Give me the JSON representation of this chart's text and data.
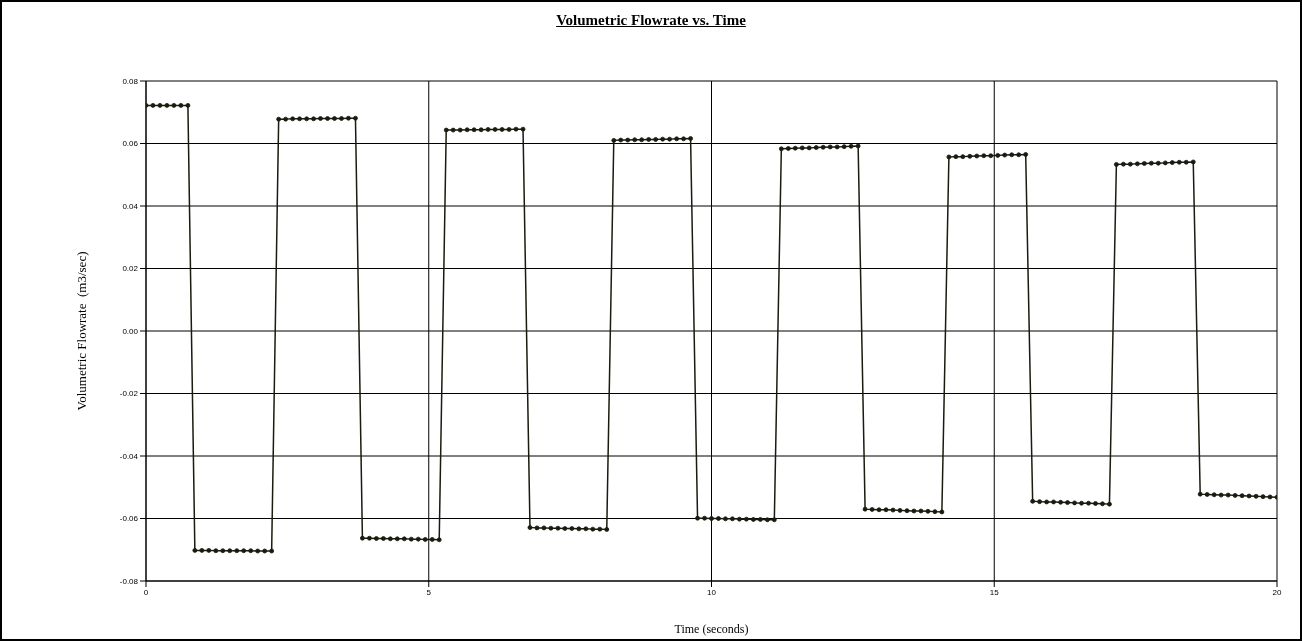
{
  "chart_data": {
    "type": "line",
    "title": "Volumetric Flowrate vs. Time",
    "xlabel": "Time (seconds)",
    "ylabel": "Volumetric Flowrate  (m3/sec)",
    "x": [
      0,
      0.123,
      0.247,
      0.37,
      0.494,
      0.617,
      0.741,
      0.864,
      0.988,
      1.111,
      1.235,
      1.358,
      1.481,
      1.605,
      1.728,
      1.852,
      1.975,
      2.099,
      2.222,
      2.346,
      2.469,
      2.593,
      2.716,
      2.84,
      2.963,
      3.086,
      3.21,
      3.333,
      3.457,
      3.58,
      3.704,
      3.827,
      3.951,
      4.074,
      4.198,
      4.321,
      4.444,
      4.568,
      4.691,
      4.815,
      4.938,
      5.062,
      5.185,
      5.309,
      5.432,
      5.556,
      5.679,
      5.802,
      5.926,
      6.049,
      6.173,
      6.296,
      6.42,
      6.543,
      6.667,
      6.79,
      6.914,
      7.037,
      7.16,
      7.284,
      7.407,
      7.531,
      7.654,
      7.778,
      7.901,
      8.025,
      8.148,
      8.272,
      8.395,
      8.519,
      8.642,
      8.765,
      8.889,
      9.012,
      9.136,
      9.259,
      9.383,
      9.506,
      9.63,
      9.753,
      9.877,
      10.0,
      10.123,
      10.247,
      10.37,
      10.494,
      10.617,
      10.741,
      10.864,
      10.988,
      11.111,
      11.235,
      11.358,
      11.481,
      11.605,
      11.728,
      11.852,
      11.975,
      12.099,
      12.222,
      12.346,
      12.469,
      12.593,
      12.716,
      12.84,
      12.963,
      13.086,
      13.21,
      13.333,
      13.457,
      13.58,
      13.704,
      13.827,
      13.951,
      14.074,
      14.198,
      14.321,
      14.444,
      14.568,
      14.691,
      14.815,
      14.938,
      15.062,
      15.185,
      15.309,
      15.432,
      15.556,
      15.679,
      15.802,
      15.926,
      16.049,
      16.173,
      16.296,
      16.42,
      16.543,
      16.667,
      16.79,
      16.914,
      17.037,
      17.16,
      17.284,
      17.407,
      17.531,
      17.654,
      17.778,
      17.901,
      18.025,
      18.148,
      18.272,
      18.395,
      18.519,
      18.642,
      18.765,
      18.889,
      19.012,
      19.136,
      19.259,
      19.383,
      19.506,
      19.63,
      19.753,
      19.877,
      20.0
    ],
    "series": [
      {
        "color": "#1a1a0f",
        "values": [
          0.0722,
          0.0722,
          0.0722,
          0.0722,
          0.0722,
          0.0722,
          0.0722,
          -0.0702,
          -0.0702,
          -0.0702,
          -0.0703,
          -0.0703,
          -0.0703,
          -0.0703,
          -0.0703,
          -0.0703,
          -0.0704,
          -0.0704,
          -0.0704,
          0.0678,
          0.0678,
          0.0679,
          0.0679,
          0.0679,
          0.0679,
          0.068,
          0.068,
          0.068,
          0.068,
          0.0681,
          0.0681,
          -0.0663,
          -0.0663,
          -0.0664,
          -0.0664,
          -0.0665,
          -0.0665,
          -0.0665,
          -0.0666,
          -0.0666,
          -0.0667,
          -0.0667,
          -0.0668,
          0.0643,
          0.0643,
          0.0643,
          0.0644,
          0.0644,
          0.0644,
          0.0645,
          0.0645,
          0.0645,
          0.0645,
          0.0646,
          0.0646,
          -0.0629,
          -0.063,
          -0.063,
          -0.0631,
          -0.0631,
          -0.0632,
          -0.0632,
          -0.0633,
          -0.0633,
          -0.0634,
          -0.0634,
          -0.0635,
          0.061,
          0.0611,
          0.0611,
          0.0612,
          0.0612,
          0.0613,
          0.0613,
          0.0614,
          0.0614,
          0.0615,
          0.0615,
          0.0616,
          -0.0599,
          -0.0599,
          -0.06,
          -0.06,
          -0.0601,
          -0.0601,
          -0.0602,
          -0.0602,
          -0.0603,
          -0.0603,
          -0.0604,
          -0.0604,
          0.0583,
          0.0584,
          0.0585,
          0.0586,
          0.0586,
          0.0587,
          0.0588,
          0.0589,
          0.0589,
          0.059,
          0.0591,
          0.0592,
          -0.057,
          -0.0571,
          -0.0572,
          -0.0572,
          -0.0573,
          -0.0574,
          -0.0575,
          -0.0576,
          -0.0576,
          -0.0577,
          -0.0578,
          -0.0579,
          0.0557,
          0.0558,
          0.0558,
          0.0559,
          0.056,
          0.0561,
          0.0561,
          0.0562,
          0.0563,
          0.0564,
          0.0564,
          0.0565,
          -0.0545,
          -0.0546,
          -0.0547,
          -0.0547,
          -0.0548,
          -0.0549,
          -0.055,
          -0.0551,
          -0.0551,
          -0.0552,
          -0.0553,
          -0.0554,
          0.0533,
          0.0534,
          0.0534,
          0.0535,
          0.0536,
          0.0537,
          0.0537,
          0.0538,
          0.0539,
          0.054,
          0.054,
          0.0541,
          -0.0522,
          -0.0523,
          -0.0524,
          -0.0525,
          -0.0525,
          -0.0526,
          -0.0527,
          -0.0528,
          -0.0529,
          -0.053,
          -0.0531,
          -0.0532
        ]
      }
    ],
    "xlim": [
      0,
      20
    ],
    "xticks": [
      0,
      5,
      10,
      15,
      20
    ],
    "ylim": [
      -0.08,
      0.08
    ],
    "yticks": [
      {
        "value": -0.08,
        "label": "-0.08"
      },
      {
        "value": -0.06,
        "label": "-0.06"
      },
      {
        "value": -0.04,
        "label": "-0.04"
      },
      {
        "value": -0.02,
        "label": "-0.02"
      },
      {
        "value": 0,
        "label": "0.00"
      },
      {
        "value": 0.02,
        "label": "0.02"
      },
      {
        "value": 0.04,
        "label": "0.04"
      },
      {
        "value": 0.06,
        "label": "0.06"
      },
      {
        "value": 0.08,
        "label": "0.08"
      }
    ],
    "grid": true,
    "marker": "circle",
    "line_style": "solid"
  }
}
